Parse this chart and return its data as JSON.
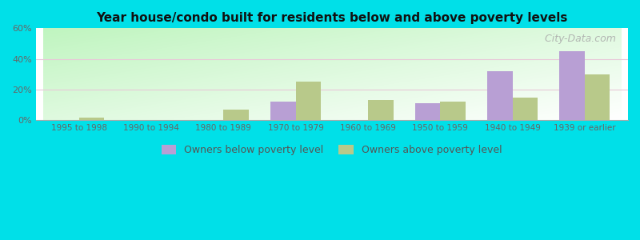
{
  "title": "Year house/condo built for residents below and above poverty levels",
  "categories": [
    "1995 to 1998",
    "1990 to 1994",
    "1980 to 1989",
    "1970 to 1979",
    "1960 to 1969",
    "1950 to 1959",
    "1940 to 1949",
    "1939 or earlier"
  ],
  "below_poverty": [
    0,
    0,
    0,
    12,
    0,
    11,
    32,
    45
  ],
  "above_poverty": [
    2,
    0,
    7,
    25,
    13,
    12,
    15,
    30
  ],
  "below_color": "#b89fd4",
  "above_color": "#b8c98a",
  "ylim": [
    0,
    60
  ],
  "yticks": [
    0,
    20,
    40,
    60
  ],
  "ytick_labels": [
    "0%",
    "20%",
    "40%",
    "60%"
  ],
  "legend_below": "Owners below poverty level",
  "legend_above": "Owners above poverty level",
  "outer_bg": "#00e0e8",
  "bar_width": 0.35,
  "watermark": "  City-Data.com"
}
